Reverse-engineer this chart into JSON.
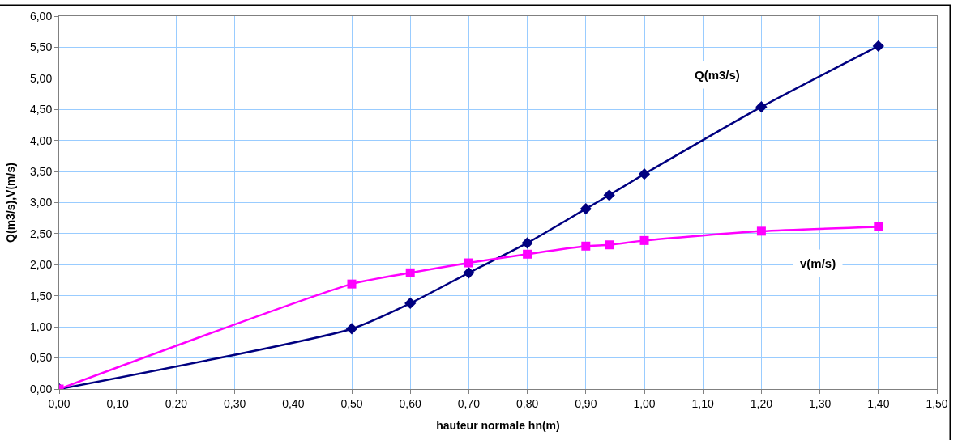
{
  "chart_data": {
    "type": "line",
    "xlabel": "hauteur normale hn(m)",
    "ylabel": "Q(m3/s),V(m/s)",
    "series": [
      {
        "name": "Q(m3/s)",
        "color": "#000080",
        "marker": "diamond",
        "x": [
          0,
          0.5,
          0.6,
          0.7,
          0.8,
          0.9,
          0.94,
          1.0,
          1.2,
          1.4
        ],
        "values": [
          0,
          0.97,
          1.38,
          1.87,
          2.35,
          2.9,
          3.12,
          3.46,
          4.54,
          5.52
        ]
      },
      {
        "name": "v(m/s)",
        "color": "#ff00ff",
        "marker": "square",
        "x": [
          0,
          0.5,
          0.6,
          0.7,
          0.8,
          0.9,
          0.94,
          1.0,
          1.2,
          1.4
        ],
        "values": [
          0,
          1.69,
          1.87,
          2.03,
          2.17,
          2.3,
          2.32,
          2.39,
          2.54,
          2.61
        ]
      }
    ],
    "xlim": [
      0,
      1.5
    ],
    "xticks": [
      {
        "value": 0,
        "label": "0,00"
      },
      {
        "value": 0.1,
        "label": "0,10"
      },
      {
        "value": 0.2,
        "label": "0,20"
      },
      {
        "value": 0.3,
        "label": "0,30"
      },
      {
        "value": 0.4,
        "label": "0,40"
      },
      {
        "value": 0.5,
        "label": "0,50"
      },
      {
        "value": 0.6,
        "label": "0,60"
      },
      {
        "value": 0.7,
        "label": "0,70"
      },
      {
        "value": 0.8,
        "label": "0,80"
      },
      {
        "value": 0.9,
        "label": "0,90"
      },
      {
        "value": 1.0,
        "label": "1,00"
      },
      {
        "value": 1.1,
        "label": "1,10"
      },
      {
        "value": 1.2,
        "label": "1,20"
      },
      {
        "value": 1.3,
        "label": "1,30"
      },
      {
        "value": 1.4,
        "label": "1,40"
      },
      {
        "value": 1.5,
        "label": "1,50"
      }
    ],
    "ylim": [
      0,
      6
    ],
    "yticks": [
      {
        "value": 0,
        "label": "0,00"
      },
      {
        "value": 0.5,
        "label": "0,50"
      },
      {
        "value": 1,
        "label": "1,00"
      },
      {
        "value": 1.5,
        "label": "1,50"
      },
      {
        "value": 2,
        "label": "2,00"
      },
      {
        "value": 2.5,
        "label": "2,50"
      },
      {
        "value": 3,
        "label": "3,00"
      },
      {
        "value": 3.5,
        "label": "3,50"
      },
      {
        "value": 4,
        "label": "4,00"
      },
      {
        "value": 4.5,
        "label": "4,50"
      },
      {
        "value": 5,
        "label": "5,00"
      },
      {
        "value": 5.5,
        "label": "5,50"
      },
      {
        "value": 6,
        "label": "6,00"
      }
    ],
    "grid": true,
    "legend": false,
    "line_style": "solid"
  }
}
